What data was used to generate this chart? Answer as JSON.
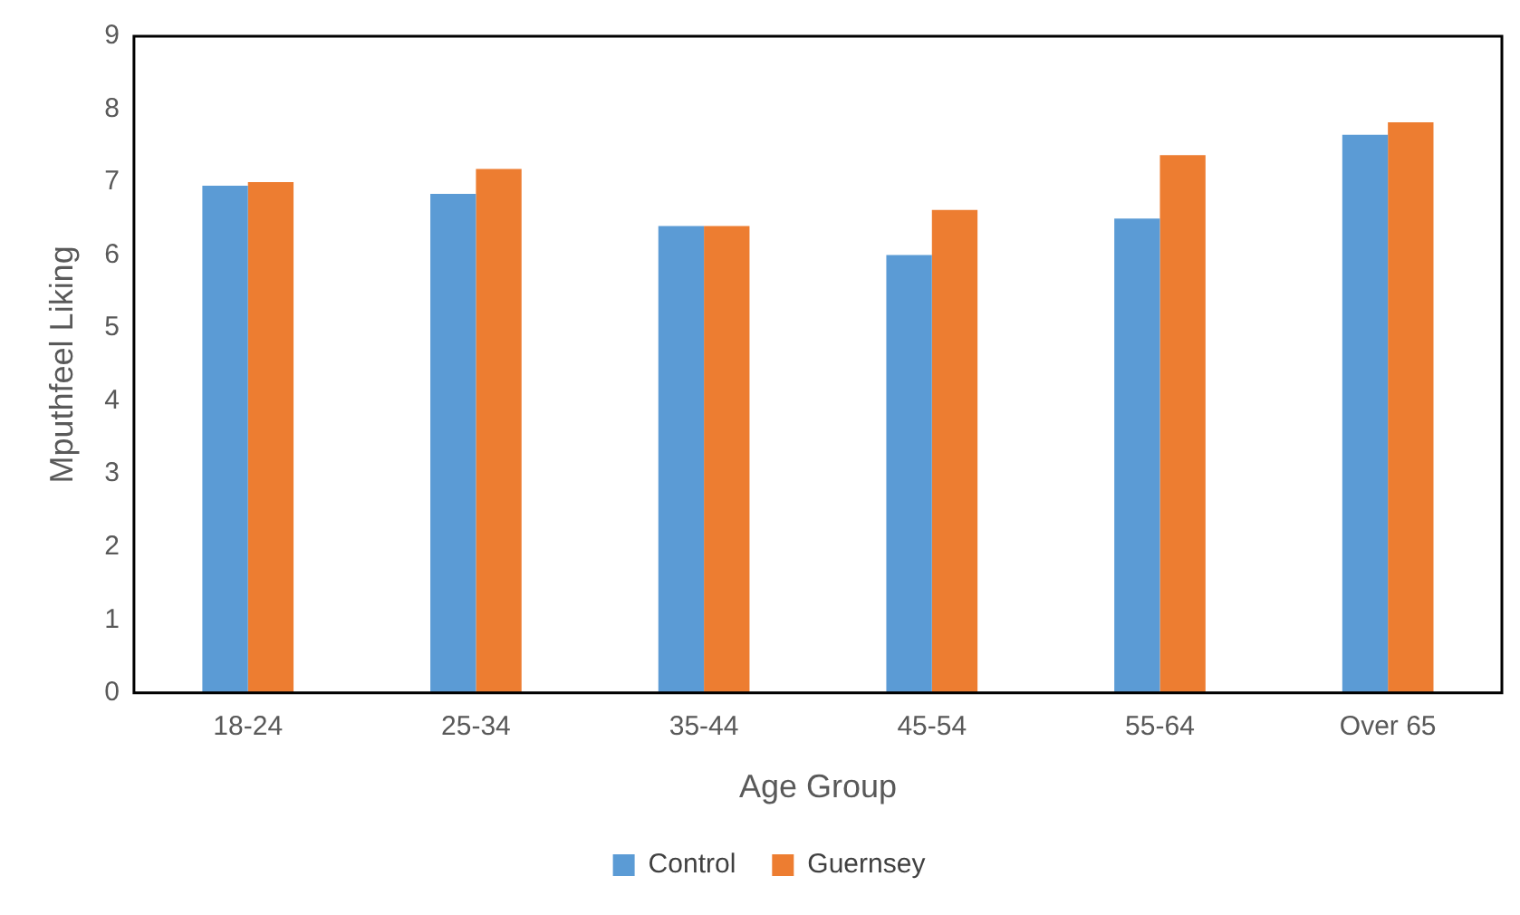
{
  "chart_data": {
    "type": "bar",
    "xlabel": "Age Group",
    "ylabel": "Mputhfeel Liking",
    "categories": [
      "18-24",
      "25-34",
      "35-44",
      "45-54",
      "55-64",
      "Over 65"
    ],
    "series": [
      {
        "name": "Control",
        "color": "#5b9bd5",
        "values": [
          6.95,
          6.84,
          6.4,
          6.0,
          6.5,
          7.65
        ]
      },
      {
        "name": "Guernsey",
        "color": "#ed7d31",
        "values": [
          7.0,
          7.18,
          6.4,
          6.62,
          7.37,
          7.82
        ]
      }
    ],
    "ylim": [
      0,
      9
    ],
    "yticks": [
      0,
      1,
      2,
      3,
      4,
      5,
      6,
      7,
      8,
      9
    ],
    "grid": false,
    "legend": "bottom"
  }
}
